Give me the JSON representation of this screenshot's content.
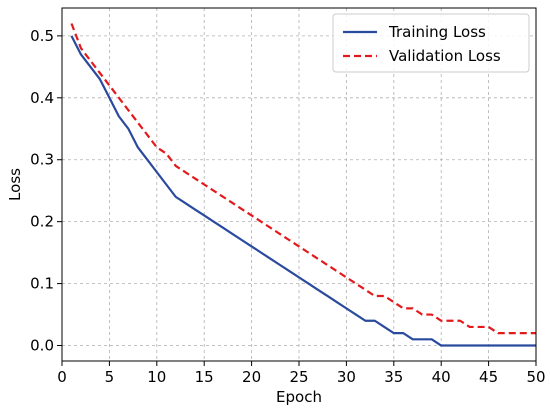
{
  "chart_data": {
    "type": "line",
    "xlabel": "Epoch",
    "ylabel": "Loss",
    "xlim": [
      0,
      50
    ],
    "ylim": [
      -0.025,
      0.545
    ],
    "xticks": [
      0,
      5,
      10,
      15,
      20,
      25,
      30,
      35,
      40,
      45,
      50
    ],
    "yticks": [
      0.0,
      0.1,
      0.2,
      0.3,
      0.4,
      0.5
    ],
    "ytick_labels": [
      "0.0",
      "0.1",
      "0.2",
      "0.3",
      "0.4",
      "0.5"
    ],
    "grid": true,
    "legend_position": "top-right",
    "x": [
      1,
      2,
      3,
      4,
      5,
      6,
      7,
      8,
      9,
      10,
      11,
      12,
      13,
      14,
      15,
      16,
      17,
      18,
      19,
      20,
      21,
      22,
      23,
      24,
      25,
      26,
      27,
      28,
      29,
      30,
      31,
      32,
      33,
      34,
      35,
      36,
      37,
      38,
      39,
      40,
      41,
      42,
      43,
      44,
      45,
      46,
      47,
      48,
      49,
      50
    ],
    "series": [
      {
        "name": "Training Loss",
        "color": "#2a4a9e",
        "style": "solid",
        "values": [
          0.5,
          0.47,
          0.45,
          0.43,
          0.4,
          0.37,
          0.35,
          0.32,
          0.3,
          0.28,
          0.26,
          0.24,
          0.23,
          0.22,
          0.21,
          0.2,
          0.19,
          0.18,
          0.17,
          0.16,
          0.15,
          0.14,
          0.13,
          0.12,
          0.11,
          0.1,
          0.09,
          0.08,
          0.07,
          0.06,
          0.05,
          0.04,
          0.04,
          0.03,
          0.02,
          0.02,
          0.01,
          0.01,
          0.01,
          0.0,
          0.0,
          0.0,
          0.0,
          0.0,
          0.0,
          0.0,
          0.0,
          0.0,
          0.0,
          0.0
        ]
      },
      {
        "name": "Validation Loss",
        "color": "#e31a1c",
        "style": "dashed",
        "values": [
          0.52,
          0.48,
          0.46,
          0.44,
          0.42,
          0.4,
          0.38,
          0.36,
          0.34,
          0.32,
          0.31,
          0.29,
          0.28,
          0.27,
          0.26,
          0.25,
          0.24,
          0.23,
          0.22,
          0.21,
          0.2,
          0.19,
          0.18,
          0.17,
          0.16,
          0.15,
          0.14,
          0.13,
          0.12,
          0.11,
          0.1,
          0.09,
          0.08,
          0.08,
          0.07,
          0.06,
          0.06,
          0.05,
          0.05,
          0.04,
          0.04,
          0.04,
          0.03,
          0.03,
          0.03,
          0.02,
          0.02,
          0.02,
          0.02,
          0.02
        ]
      }
    ]
  }
}
